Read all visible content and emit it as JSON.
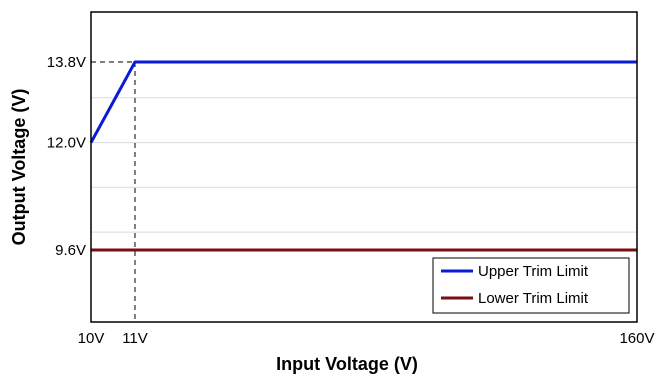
{
  "chart_data": {
    "type": "line",
    "xlabel": "Input Voltage (V)",
    "ylabel": "Output Voltage (V)",
    "x_ticks": [
      {
        "value": 10,
        "label": "10V"
      },
      {
        "value": 11,
        "label": "11V"
      },
      {
        "value": 160,
        "label": "160V"
      }
    ],
    "y_ticks": [
      {
        "value": 13.8,
        "label": "13.8V"
      },
      {
        "value": 12.0,
        "label": "12.0V"
      },
      {
        "value": 9.6,
        "label": "9.6V"
      }
    ],
    "y_gridlines": [
      13.0,
      12.0,
      11.0,
      10.0
    ],
    "series": [
      {
        "name": "Upper Trim Limit",
        "color": "#0a1ad6",
        "x": [
          10,
          11,
          160
        ],
        "y": [
          12.0,
          13.8,
          13.8
        ]
      },
      {
        "name": "Lower Trim Limit",
        "color": "#7a0f10",
        "x": [
          10,
          160
        ],
        "y": [
          9.6,
          9.6
        ]
      }
    ],
    "reference_lines": [
      {
        "x": [
          10,
          11
        ],
        "y": [
          13.8,
          13.8
        ]
      },
      {
        "x": [
          11,
          11
        ],
        "y": [
          13.8,
          8.0
        ]
      }
    ],
    "legend_position": "bottom-right"
  }
}
